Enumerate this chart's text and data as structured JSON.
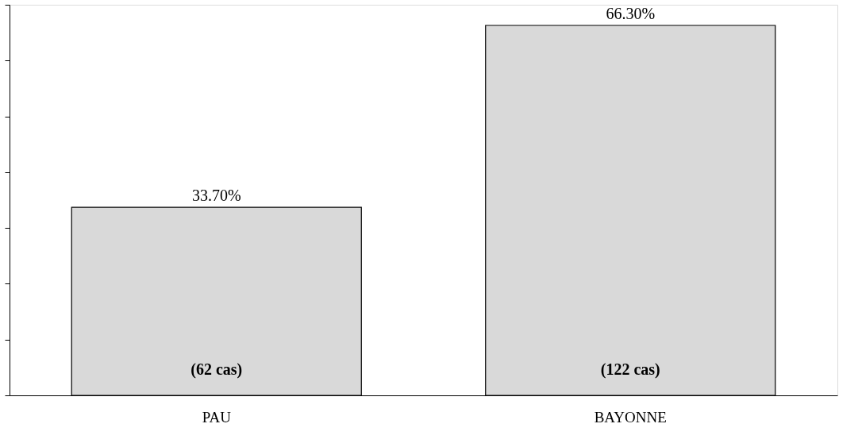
{
  "chart_data": {
    "type": "bar",
    "categories": [
      "PAU",
      "BAYONNE"
    ],
    "values": [
      33.7,
      66.3
    ],
    "value_labels": [
      "33.70%",
      "66.30%"
    ],
    "color": "#d9d9d9",
    "ylim": [
      0,
      70
    ],
    "yticks": [
      {
        "value": 0,
        "label": null
      },
      {
        "value": 10,
        "label": null
      },
      {
        "value": 20,
        "label": null
      },
      {
        "value": 30,
        "label": null
      },
      {
        "value": 40,
        "label": null
      },
      {
        "value": 50,
        "label": null
      },
      {
        "value": 60,
        "label": null
      },
      {
        "value": 70,
        "label": null
      }
    ],
    "tick_labels": "x",
    "grid": false,
    "annotations": [
      "(62 cas)",
      "(122 cas)"
    ]
  }
}
